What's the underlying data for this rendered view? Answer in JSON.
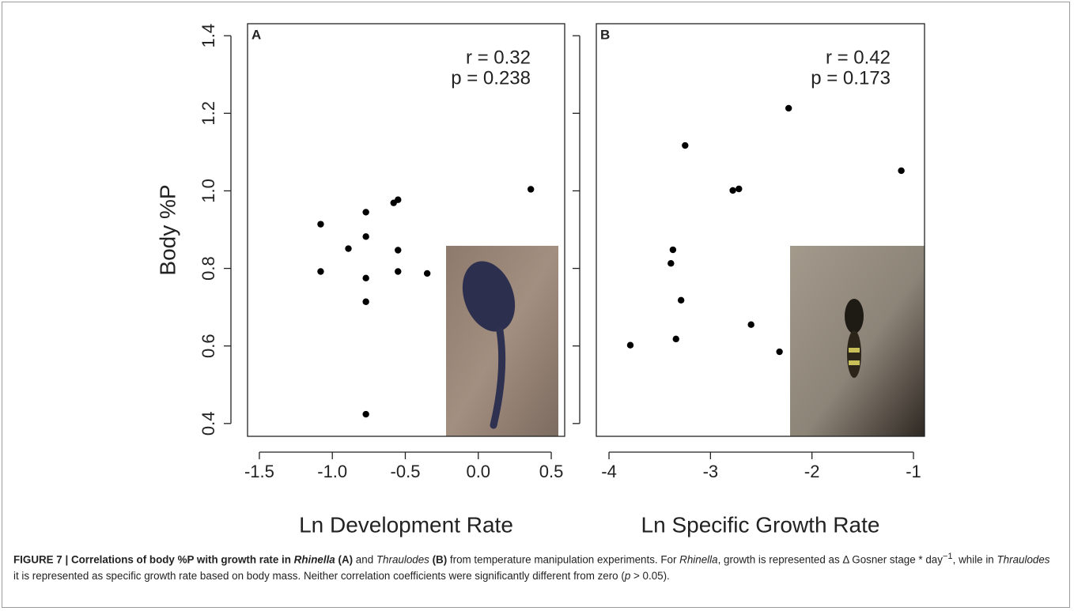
{
  "chart_data": [
    {
      "type": "scatter",
      "panel": "A",
      "annotations": [
        "r = 0.32",
        "p = 0.238"
      ],
      "x_label": "Ln Development Rate",
      "y_label": "Body %P",
      "color": "#000000",
      "x": [
        -1.08,
        -1.08,
        -0.89,
        -0.77,
        -0.77,
        -0.77,
        -0.77,
        -0.77,
        -0.58,
        -0.55,
        -0.55,
        -0.55,
        -0.35,
        0.36
      ],
      "values": [
        0.914,
        0.792,
        0.851,
        0.945,
        0.882,
        0.775,
        0.714,
        0.424,
        0.969,
        0.977,
        0.847,
        0.792,
        0.787,
        1.004
      ],
      "xlim": [
        -1.581,
        0.592
      ],
      "ylim": [
        0.367,
        1.431
      ],
      "xticks": [
        -1.5,
        {
          "value": -1,
          "label": "-1.0"
        },
        -0.5,
        {
          "value": 0,
          "label": "0.0"
        },
        0.5
      ],
      "yticks": [
        0.4,
        0.6,
        0.8,
        {
          "value": 1,
          "label": "1.0"
        },
        1.2,
        1.4
      ]
    },
    {
      "type": "scatter",
      "panel": "B",
      "annotations": [
        "r = 0.42",
        "p = 0.173"
      ],
      "x_label": "Ln Specific Growth Rate",
      "color": "#000000",
      "x": [
        -3.79,
        -3.37,
        -3.39,
        -3.34,
        -3.29,
        -3.25,
        -2.78,
        -2.72,
        -2.6,
        -2.32,
        -2.23,
        -1.12
      ],
      "values": [
        0.602,
        0.848,
        0.813,
        0.618,
        0.718,
        1.117,
        1.001,
        1.005,
        0.655,
        0.585,
        1.213,
        1.052
      ],
      "xlim": [
        -4.125,
        -0.891
      ],
      "ylim": [
        0.367,
        1.431
      ],
      "xticks": [
        -4,
        -3,
        -2,
        -1
      ],
      "yticks": [
        0.4,
        0.6,
        0.8,
        1,
        1.2,
        1.4
      ]
    }
  ],
  "caption": [
    "FIGURE 7 | Correlations of body %P with growth rate in ",
    "Rhinella",
    " (A)",
    " and ",
    "Thraulodes",
    " (B)",
    " from temperature manipulation experiments. For ",
    "Rhinella",
    ", growth is represented as Δ Gosner stage * day",
    "−1",
    ", while in ",
    "Thraulodes",
    " it is represented as specific growth rate based on body mass. Neither correlation coefficients were significantly different from zero (",
    "p",
    " > 0.05)."
  ]
}
